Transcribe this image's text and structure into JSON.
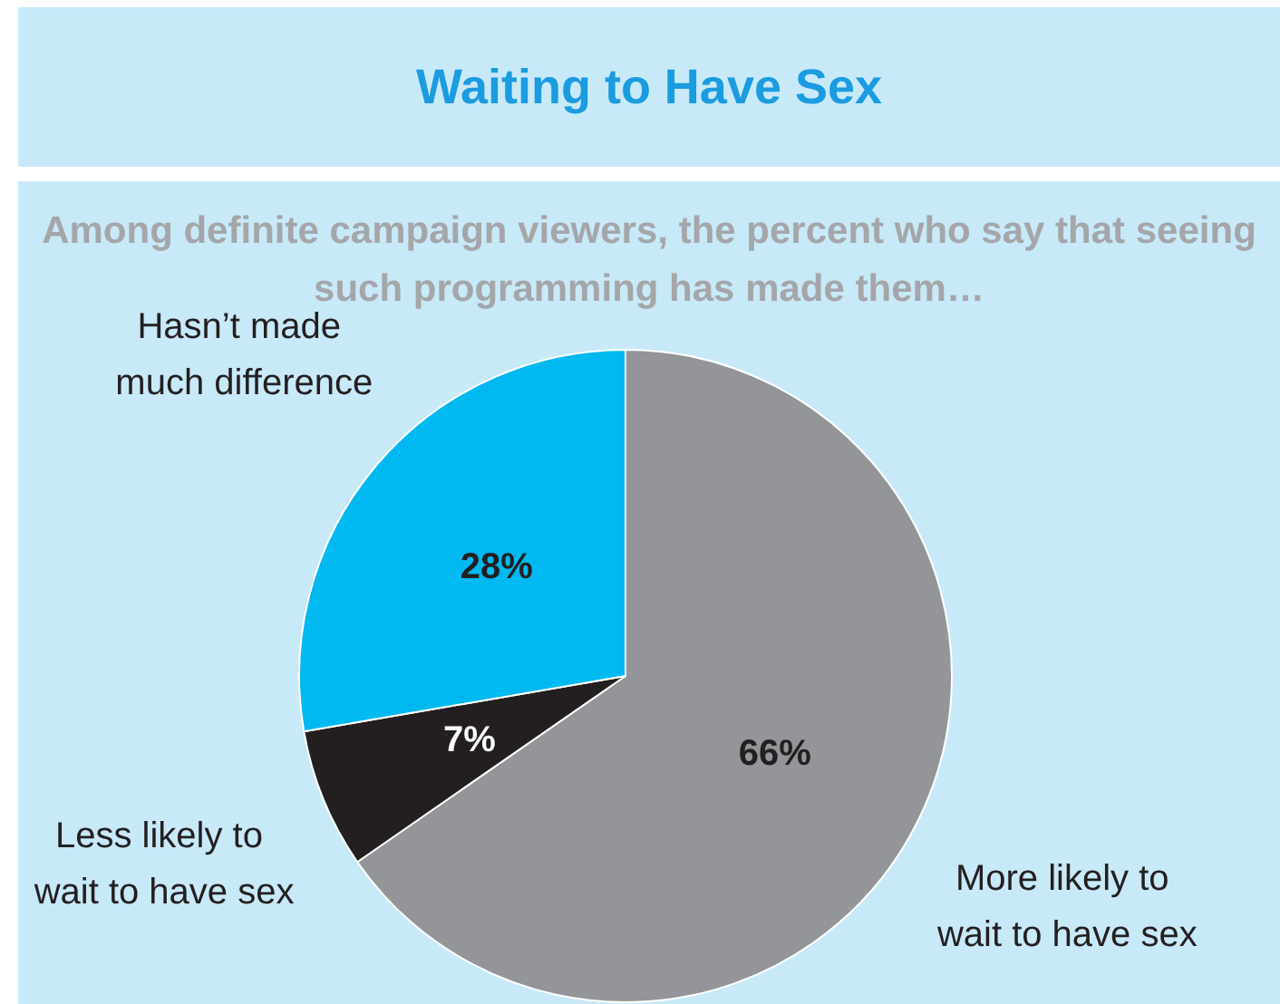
{
  "chart_data": {
    "type": "pie",
    "title": "Waiting to Have Sex",
    "subtitle": "Among definite campaign viewers, the percent who say that seeing such programming has made them…",
    "categories": [
      "More likely to wait to have sex",
      "Less likely to wait to have sex",
      "Hasn’t made much difference"
    ],
    "values": [
      66,
      7,
      28
    ],
    "colors": [
      "#939598",
      "#231f20",
      "#00b9f1"
    ],
    "value_labels": [
      "66%",
      "7%",
      "28%"
    ]
  }
}
